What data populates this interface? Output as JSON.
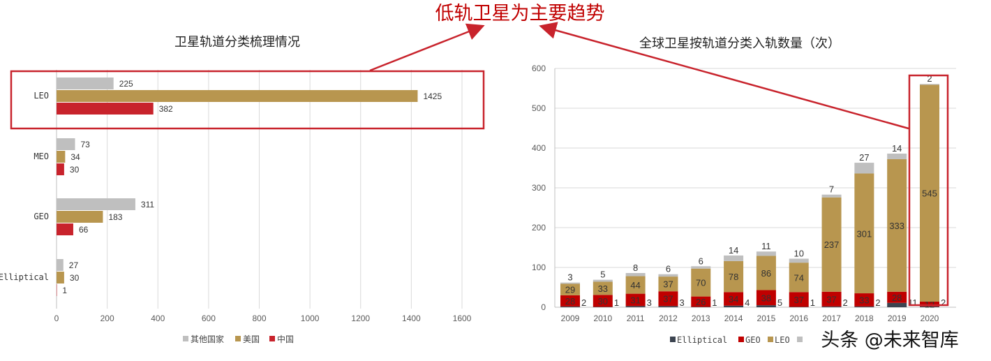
{
  "headline": "低轨卫星为主要趋势",
  "watermark": "头条 @未来智库",
  "colors": {
    "highlight": "#c8232c",
    "other": "#bfbfbf",
    "usa": "#b8964f",
    "china": "#c8232c",
    "elliptical": "#3c4450",
    "geo": "#c00000",
    "leo": "#b8964f"
  },
  "chart_data": [
    {
      "type": "bar",
      "orientation": "horizontal",
      "title": "卫星轨道分类梳理情况",
      "categories": [
        "LEO",
        "MEO",
        "GEO",
        "Elliptical"
      ],
      "series": [
        {
          "name": "其他国家",
          "values": [
            225,
            73,
            311,
            27
          ]
        },
        {
          "name": "美国",
          "values": [
            1425,
            34,
            183,
            30
          ]
        },
        {
          "name": "中国",
          "values": [
            382,
            30,
            66,
            1
          ]
        }
      ],
      "xlim": [
        0,
        1600
      ],
      "xticks": [
        0,
        200,
        400,
        600,
        800,
        1000,
        1200,
        1400,
        1600
      ],
      "grid": true,
      "legend": "bottom",
      "highlighted_category": "LEO"
    },
    {
      "type": "bar",
      "stacked": true,
      "title": "全球卫星按轨道分类入轨数量（次）",
      "categories": [
        "2009",
        "2010",
        "2011",
        "2012",
        "2013",
        "2014",
        "2015",
        "2016",
        "2017",
        "2018",
        "2019",
        "2020"
      ],
      "series": [
        {
          "name": "Elliptical",
          "values": [
            2,
            1,
            3,
            3,
            1,
            4,
            5,
            1,
            2,
            2,
            11,
            2
          ]
        },
        {
          "name": "GEO",
          "values": [
            28,
            30,
            31,
            37,
            26,
            34,
            38,
            37,
            37,
            33,
            28,
            12
          ]
        },
        {
          "name": "LEO",
          "values": [
            29,
            33,
            44,
            37,
            70,
            78,
            86,
            74,
            237,
            301,
            333,
            545
          ]
        },
        {
          "name": "",
          "values": [
            3,
            5,
            8,
            6,
            6,
            14,
            11,
            10,
            7,
            27,
            14,
            2
          ]
        }
      ],
      "ylim": [
        0,
        600
      ],
      "yticks": [
        0,
        100,
        200,
        300,
        400,
        500,
        600
      ],
      "grid": true,
      "legend": "bottom",
      "highlighted_category": "2020"
    }
  ]
}
